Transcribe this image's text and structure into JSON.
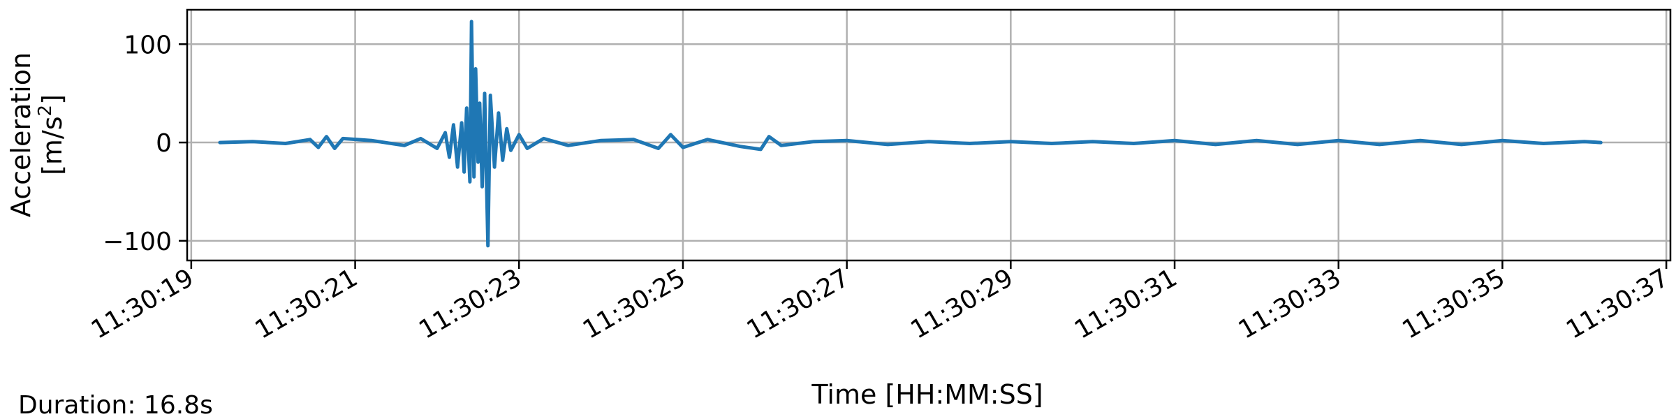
{
  "chart_data": {
    "type": "line",
    "title": "",
    "xlabel": "Time [HH:MM:SS]",
    "ylabel_line1": "Acceleration",
    "ylabel_unit_prefix": "[m/s",
    "ylabel_unit_exp": "2",
    "ylabel_unit_suffix": "]",
    "xlim": [
      "11:30:18.95",
      "11:30:37.05"
    ],
    "ylim": [
      -120,
      135
    ],
    "x_ticks": [
      "11:30:19",
      "11:30:21",
      "11:30:23",
      "11:30:25",
      "11:30:27",
      "11:30:29",
      "11:30:31",
      "11:30:33",
      "11:30:35",
      "11:30:37"
    ],
    "y_ticks": [
      -100,
      0,
      100
    ],
    "y_tick_labels": [
      "−100",
      "0",
      "100"
    ],
    "grid": true,
    "line_color": "#1f77b4",
    "series": [
      {
        "x": [
          "11:30:19.35",
          "11:30:19.75",
          "11:30:20.15",
          "11:30:20.45",
          "11:30:20.55",
          "11:30:20.65",
          "11:30:20.75",
          "11:30:20.85",
          "11:30:21.20",
          "11:30:21.60",
          "11:30:21.80",
          "11:30:22.00",
          "11:30:22.10",
          "11:30:22.15",
          "11:30:22.20",
          "11:30:22.25",
          "11:30:22.30",
          "11:30:22.33",
          "11:30:22.36",
          "11:30:22.40",
          "11:30:22.42",
          "11:30:22.45",
          "11:30:22.47",
          "11:30:22.50",
          "11:30:22.52",
          "11:30:22.55",
          "11:30:22.58",
          "11:30:22.62",
          "11:30:22.65",
          "11:30:22.70",
          "11:30:22.75",
          "11:30:22.80",
          "11:30:22.85",
          "11:30:22.90",
          "11:30:23.00",
          "11:30:23.10",
          "11:30:23.30",
          "11:30:23.60",
          "11:30:24.00",
          "11:30:24.40",
          "11:30:24.70",
          "11:30:24.85",
          "11:30:25.00",
          "11:30:25.30",
          "11:30:25.70",
          "11:30:25.95",
          "11:30:26.05",
          "11:30:26.20",
          "11:30:26.60",
          "11:30:27.00",
          "11:30:27.50",
          "11:30:28.00",
          "11:30:28.50",
          "11:30:29.00",
          "11:30:29.50",
          "11:30:30.00",
          "11:30:30.50",
          "11:30:31.00",
          "11:30:31.50",
          "11:30:32.00",
          "11:30:32.50",
          "11:30:33.00",
          "11:30:33.50",
          "11:30:34.00",
          "11:30:34.50",
          "11:30:35.00",
          "11:30:35.50",
          "11:30:36.00",
          "11:30:36.20"
        ],
        "values": [
          0,
          1,
          -1,
          3,
          -5,
          6,
          -6,
          4,
          2,
          -3,
          4,
          -6,
          10,
          -15,
          18,
          -25,
          20,
          -30,
          35,
          -40,
          123,
          -35,
          75,
          -20,
          40,
          -45,
          50,
          -105,
          48,
          -25,
          30,
          -18,
          14,
          -8,
          8,
          -6,
          4,
          -3,
          2,
          3,
          -6,
          8,
          -5,
          3,
          -4,
          -7,
          6,
          -3,
          1,
          2,
          -2,
          1,
          -1,
          1,
          -1,
          1,
          -1,
          2,
          -2,
          2,
          -2,
          2,
          -2,
          2,
          -2,
          2,
          -1,
          1,
          0
        ]
      }
    ]
  },
  "footer": {
    "duration": "Duration: 16.8s"
  }
}
